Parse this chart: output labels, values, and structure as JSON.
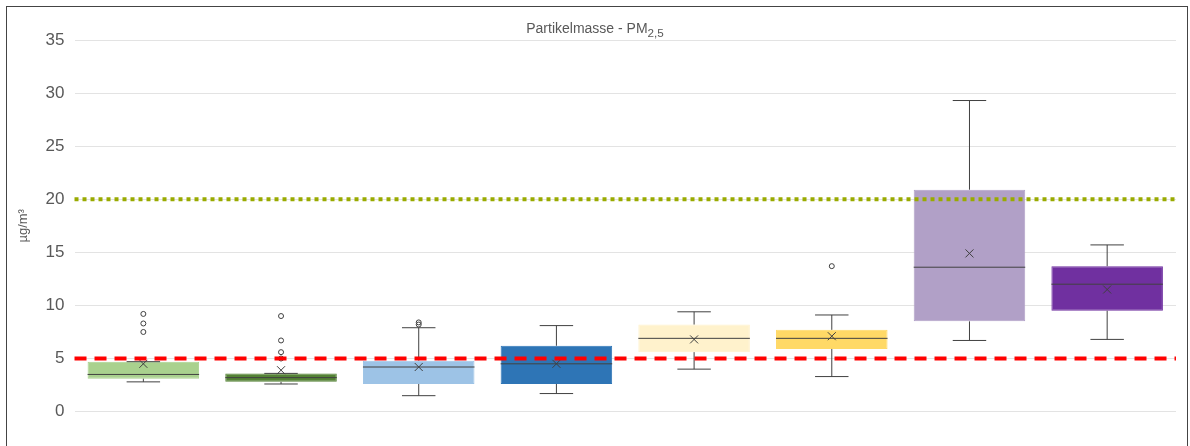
{
  "chart_data": {
    "type": "box",
    "title": "Partikelmasse - PM$_{2,5}$",
    "ylabel": "µg/m³",
    "categories": [
      null,
      null,
      null,
      null,
      null,
      null,
      null,
      null
    ],
    "ylim": [
      0,
      35
    ],
    "yticks": [
      0,
      5,
      10,
      15,
      20,
      25,
      30,
      35
    ],
    "grid": "y",
    "legend": false,
    "colors": [
      "#a9d18e",
      "#548235",
      "#9dc3e6",
      "#2e75b6",
      "#fff2cc",
      "#ffd966",
      "#b1a0c7",
      "#7030a0"
    ],
    "boxes": [
      {
        "low": 2.8,
        "q1": 3.1,
        "median": 3.5,
        "q3": 4.7,
        "high": 4.7,
        "mean": 4.5,
        "outliers": [
          7.5,
          8.3,
          9.2
        ]
      },
      {
        "low": 2.6,
        "q1": 2.8,
        "median": 3.2,
        "q3": 3.6,
        "high": 3.6,
        "mean": 3.9,
        "outliers": [
          5.0,
          5.6,
          6.7,
          9.0
        ]
      },
      {
        "low": 1.5,
        "q1": 2.6,
        "median": 4.2,
        "q3": 4.8,
        "high": 7.9,
        "mean": 4.2,
        "outliers": [
          8.2,
          8.4
        ]
      },
      {
        "low": 1.7,
        "q1": 2.6,
        "median": 4.5,
        "q3": 6.2,
        "high": 8.1,
        "mean": 4.5
      },
      {
        "low": 4.0,
        "q1": 5.6,
        "median": 6.9,
        "q3": 8.2,
        "high": 9.4,
        "mean": 6.8
      },
      {
        "low": 3.3,
        "q1": 5.9,
        "median": 6.9,
        "q3": 7.7,
        "high": 9.1,
        "mean": 7.1,
        "outliers": [
          13.7
        ]
      },
      {
        "low": 6.7,
        "q1": 8.5,
        "median": 13.6,
        "q3": 20.9,
        "high": 29.3,
        "mean": 14.9
      },
      {
        "low": 6.8,
        "q1": 9.5,
        "median": 12.0,
        "q3": 13.7,
        "high": 15.7,
        "mean": 11.5
      }
    ],
    "ref_lines": [
      {
        "axis": "y",
        "value": 5,
        "color": "#ff0000",
        "line_style": "dashed"
      },
      {
        "axis": "y",
        "value": 20,
        "color": "#99aa00",
        "line_style": "dotted"
      }
    ]
  }
}
